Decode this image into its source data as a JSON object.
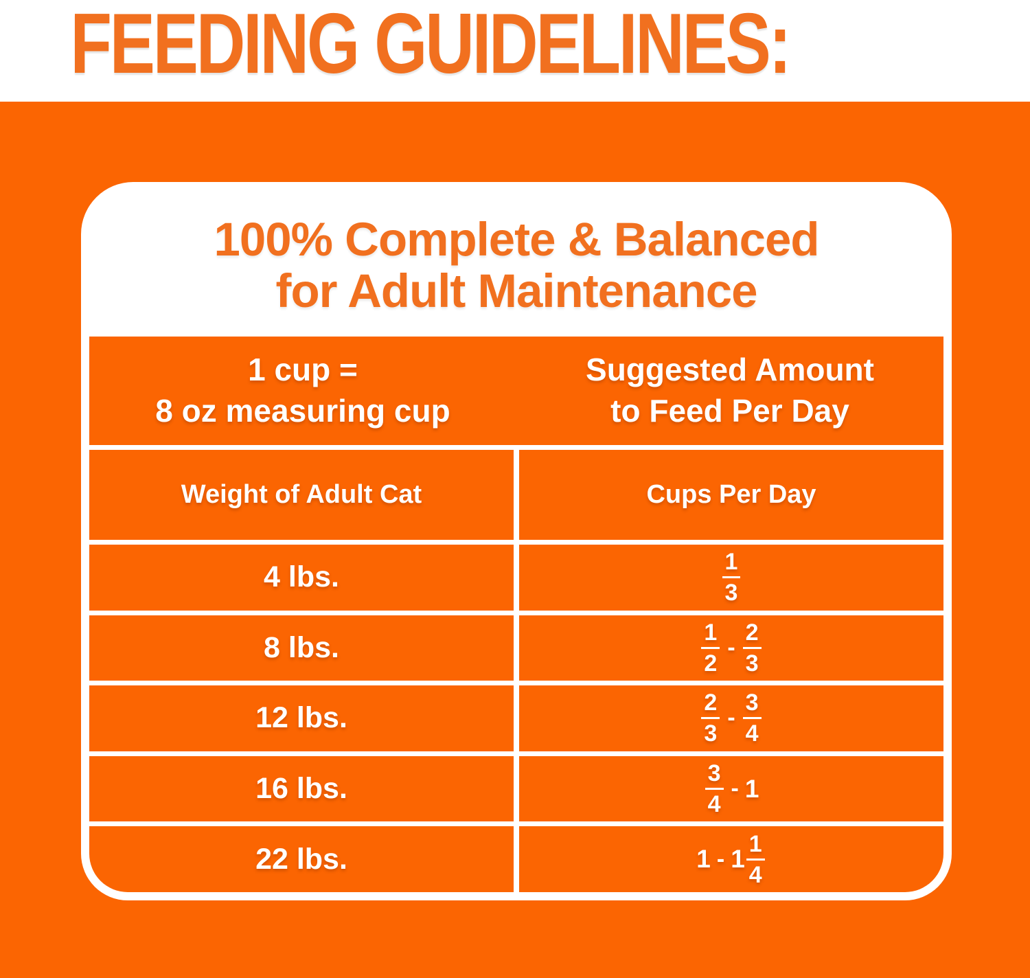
{
  "page": {
    "title": "FEEDING GUIDELINES:"
  },
  "colors": {
    "orange": "#FB6502",
    "heading_orange": "#F1701F",
    "white": "#FFFFFF"
  },
  "card": {
    "heading": {
      "line1": "100% Complete & Balanced",
      "line2": "for Adult Maintenance"
    },
    "cup_info": {
      "line1": "1 cup =",
      "line2": "8 oz measuring cup"
    },
    "amount_info": {
      "line1": "Suggested Amount",
      "line2": "to Feed Per Day"
    }
  },
  "chart_data": {
    "type": "table",
    "title": "100% Complete & Balanced for Adult Maintenance",
    "note": "1 cup = 8 oz measuring cup; Suggested Amount to Feed Per Day",
    "columns": [
      "Weight of Adult Cat",
      "Cups Per Day"
    ],
    "rows": [
      [
        "4 lbs.",
        "1/3"
      ],
      [
        "8 lbs.",
        "1/2 - 2/3"
      ],
      [
        "12 lbs.",
        "2/3 - 3/4"
      ],
      [
        "16 lbs.",
        "3/4 - 1"
      ],
      [
        "22 lbs.",
        "1 - 1 1/4"
      ]
    ]
  }
}
